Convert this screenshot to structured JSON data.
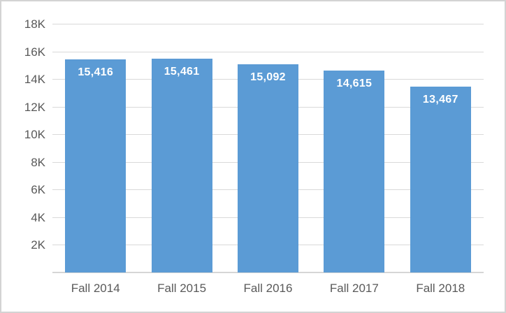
{
  "chart_data": {
    "type": "bar",
    "title": "",
    "xlabel": "",
    "ylabel": "",
    "categories": [
      "Fall 2014",
      "Fall 2015",
      "Fall 2016",
      "Fall 2017",
      "Fall 2018"
    ],
    "values": [
      15416,
      15461,
      15092,
      14615,
      13467
    ],
    "value_labels": [
      "15,416",
      "15,461",
      "15,092",
      "14,615",
      "13,467"
    ],
    "y_ticks": [
      {
        "value": 2000,
        "label": "2K"
      },
      {
        "value": 4000,
        "label": "4K"
      },
      {
        "value": 6000,
        "label": "6K"
      },
      {
        "value": 8000,
        "label": "8K"
      },
      {
        "value": 10000,
        "label": "10K"
      },
      {
        "value": 12000,
        "label": "12K"
      },
      {
        "value": 14000,
        "label": "14K"
      },
      {
        "value": 16000,
        "label": "16K"
      },
      {
        "value": 18000,
        "label": "18K"
      }
    ],
    "ylim": [
      0,
      18000
    ],
    "grid": true,
    "legend": "none",
    "data_label_position": "inside-end",
    "colors": {
      "bar": "#5b9bd5",
      "grid": "#d9d9d9",
      "axis_text": "#595959",
      "data_label": "#ffffff",
      "border": "#d3d3d3",
      "background": "#ffffff"
    }
  }
}
